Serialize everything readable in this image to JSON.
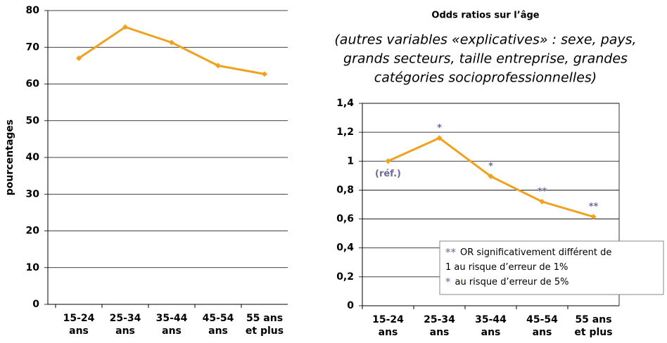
{
  "chart_data": [
    {
      "type": "line",
      "y_label": "pourcentages",
      "categories": [
        [
          "15-24",
          "ans"
        ],
        [
          "25-34",
          "ans"
        ],
        [
          "35-44",
          "ans"
        ],
        [
          "45-54",
          "ans"
        ],
        [
          "55 ans",
          "et plus"
        ]
      ],
      "values": [
        67,
        75.5,
        71.3,
        65,
        62.7
      ],
      "color": "#f0a21e",
      "ylim": [
        0,
        80
      ],
      "yticks": [
        0,
        10,
        20,
        30,
        40,
        50,
        60,
        70,
        80
      ],
      "grid": true
    },
    {
      "type": "line",
      "title": "Odds ratios sur l’âge",
      "subtitle": [
        "(autres variables «explicatives» : sexe, pays,",
        "grands secteurs, taille entreprise, grandes",
        "catégories socioprofessionnelles)"
      ],
      "categories": [
        [
          "15-24",
          "ans"
        ],
        [
          "25-34",
          "ans"
        ],
        [
          "35-44",
          "ans"
        ],
        [
          "45-54",
          "ans"
        ],
        [
          "55 ans",
          "et plus"
        ]
      ],
      "values": [
        1,
        1.16,
        0.895,
        0.72,
        0.615
      ],
      "color": "#f0a21e",
      "value_annotations": [
        "(réf.)",
        "*",
        "*",
        "**",
        "**"
      ],
      "ylim": [
        0,
        1.4
      ],
      "yticks": [
        0,
        {
          "value": 0.2,
          "label": "0,2"
        },
        {
          "value": 0.4,
          "label": "0,4"
        },
        {
          "value": 0.6,
          "label": "0,6"
        },
        {
          "value": 0.8,
          "label": "0,8"
        },
        1,
        {
          "value": 1.2,
          "label": "1,2"
        },
        {
          "value": 1.4,
          "label": "1,4"
        }
      ],
      "grid": true,
      "note": [
        {
          "mark": "**",
          "text": "OR significativement différent de"
        },
        {
          "text": "1 au risque d’erreur de 1%"
        },
        {
          "mark": "*",
          "text": "au risque d’erreur de 5%"
        }
      ]
    }
  ]
}
